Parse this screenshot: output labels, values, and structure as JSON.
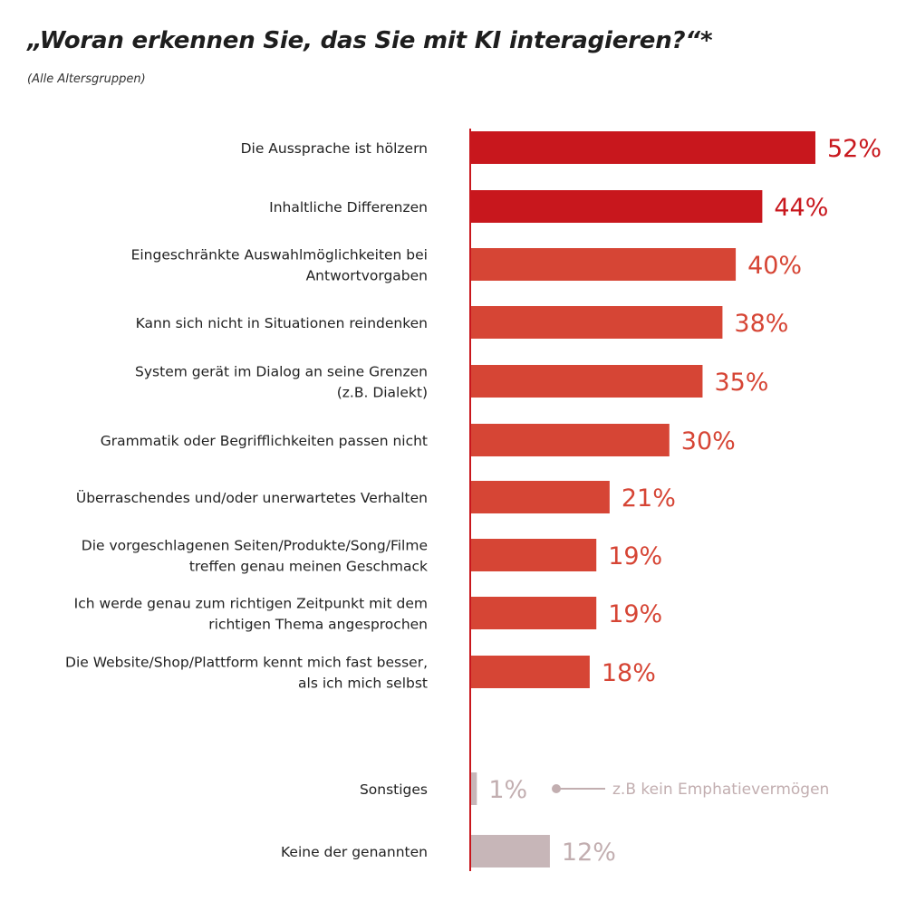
{
  "chart_data": {
    "type": "bar",
    "orientation": "horizontal",
    "title": "„Woran erkennen Sie, das Sie mit KI interagieren?“*",
    "subtitle": "(Alle Altersgruppen)",
    "xlim": [
      0,
      52
    ],
    "unit": "%",
    "categories": [
      [
        "Die Aussprache ist hölzern"
      ],
      [
        "Inhaltliche Differenzen"
      ],
      [
        "Eingeschränkte Auswahlmöglichkeiten bei",
        "Antwortvorgaben"
      ],
      [
        "Kann sich nicht in Situationen reindenken"
      ],
      [
        "System gerät im Dialog an seine Grenzen",
        "(z.B. Dialekt)"
      ],
      [
        "Grammatik oder Begrifflichkeiten passen nicht"
      ],
      [
        "Überraschendes und/oder unerwartetes Verhalten"
      ],
      [
        "Die vorgeschlagenen Seiten/Produkte/Song/Filme",
        "treffen genau meinen Geschmack"
      ],
      [
        "Ich werde genau zum richtigen Zeitpunkt mit dem",
        "richtigen Thema angesprochen"
      ],
      [
        "Die Website/Shop/Plattform kennt mich fast besser,",
        "als ich mich selbst"
      ],
      [
        "Sonstiges"
      ],
      [
        "Keine der genannten"
      ]
    ],
    "values": [
      52,
      44,
      40,
      38,
      35,
      30,
      21,
      19,
      19,
      18,
      1,
      12
    ],
    "value_labels": [
      "52%",
      "44%",
      "40%",
      "38%",
      "35%",
      "30%",
      "21%",
      "19%",
      "19%",
      "18%",
      "1%",
      "12%"
    ],
    "bar_colors": [
      "#c8171d",
      "#c8171d",
      "#d64535",
      "#d64535",
      "#d64535",
      "#d64535",
      "#d64535",
      "#d64535",
      "#d64535",
      "#d64535",
      "#c7b6b8",
      "#c7b6b8"
    ],
    "label_colors": [
      "#c8171d",
      "#c8171d",
      "#d64535",
      "#d64535",
      "#d64535",
      "#d64535",
      "#d64535",
      "#d64535",
      "#d64535",
      "#d64535",
      "#c2aeb0",
      "#c2aeb0"
    ],
    "annotation": {
      "category_index": 10,
      "text": "z.B kein Emphatievermögen",
      "color": "#c2aeb0"
    },
    "axis_color": "#c8171d"
  }
}
